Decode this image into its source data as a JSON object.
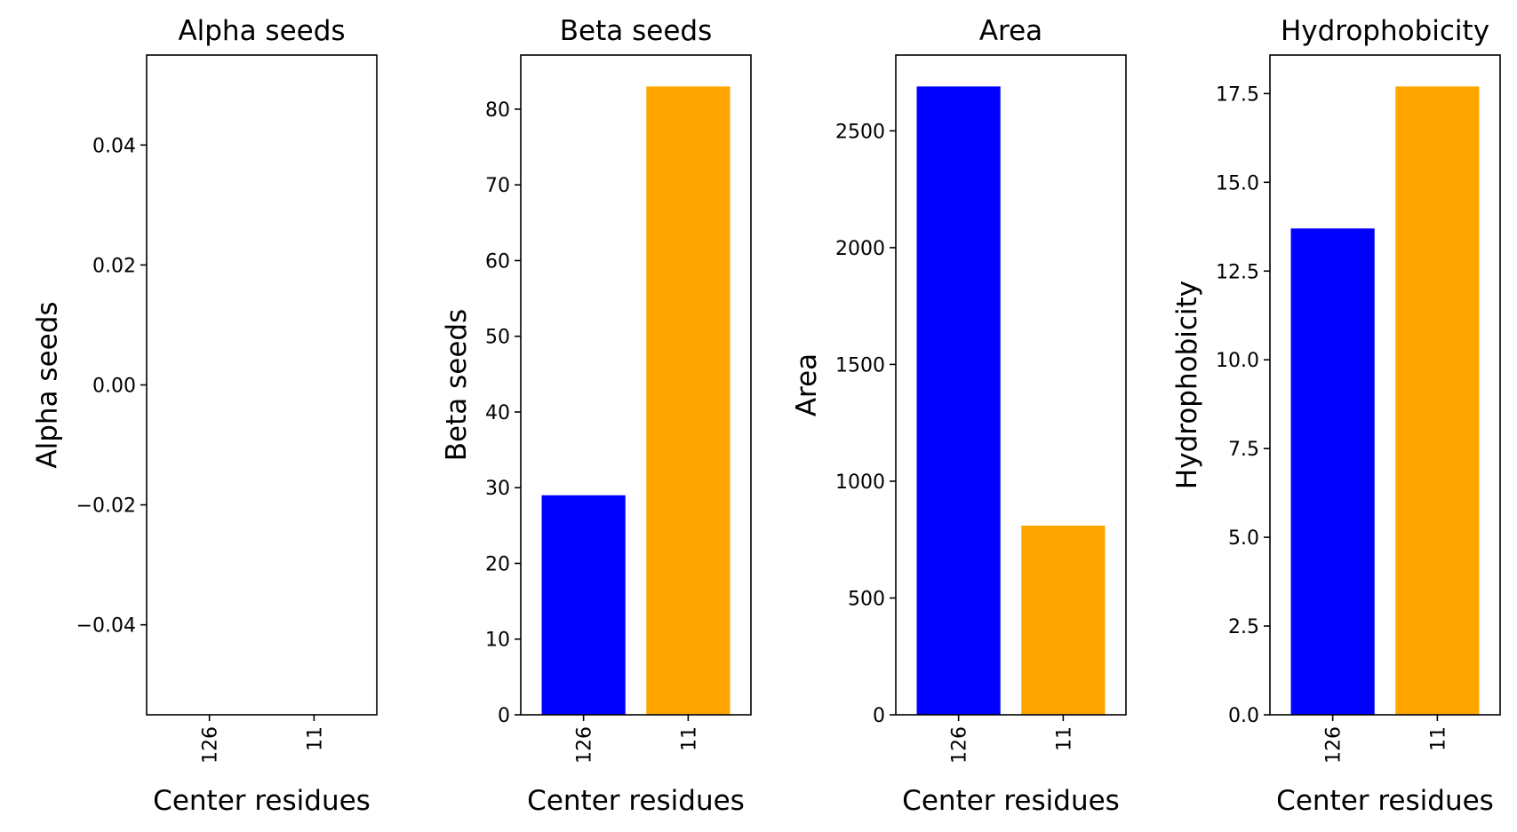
{
  "colors": {
    "bar_1": "#0000ff",
    "bar_2": "#ffa500",
    "axes": "#000000"
  },
  "chart_data": [
    {
      "type": "bar",
      "title": "Alpha seeds",
      "xlabel": "Center residues",
      "ylabel": "Alpha seeds",
      "categories": [
        "126",
        "11"
      ],
      "values": [
        0,
        0
      ],
      "ylim": [
        -0.055,
        0.055
      ],
      "yticks": [
        -0.04,
        -0.02,
        0.0,
        0.02,
        0.04
      ],
      "ytick_labels": [
        "−0.04",
        "−0.02",
        "0.00",
        "0.02",
        "0.04"
      ],
      "bar_colors": [
        "#0000ff",
        "#ffa500"
      ],
      "grid": false
    },
    {
      "type": "bar",
      "title": "Beta seeds",
      "xlabel": "Center residues",
      "ylabel": "Beta seeds",
      "categories": [
        "126",
        "11"
      ],
      "values": [
        29,
        83
      ],
      "ylim": [
        0,
        87.15
      ],
      "yticks": [
        0,
        10,
        20,
        30,
        40,
        50,
        60,
        70,
        80
      ],
      "ytick_labels": [
        "0",
        "10",
        "20",
        "30",
        "40",
        "50",
        "60",
        "70",
        "80"
      ],
      "bar_colors": [
        "#0000ff",
        "#ffa500"
      ],
      "grid": false
    },
    {
      "type": "bar",
      "title": "Area",
      "xlabel": "Center residues",
      "ylabel": "Area",
      "categories": [
        "126",
        "11"
      ],
      "values": [
        2690,
        810
      ],
      "ylim": [
        0,
        2824.5
      ],
      "yticks": [
        0,
        500,
        1000,
        1500,
        2000,
        2500
      ],
      "ytick_labels": [
        "0",
        "500",
        "1000",
        "1500",
        "2000",
        "2500"
      ],
      "bar_colors": [
        "#0000ff",
        "#ffa500"
      ],
      "grid": false
    },
    {
      "type": "bar",
      "title": "Hydrophobicity",
      "xlabel": "Center residues",
      "ylabel": "Hydrophobicity",
      "categories": [
        "126",
        "11"
      ],
      "values": [
        13.7,
        17.7
      ],
      "ylim": [
        0,
        18.585
      ],
      "yticks": [
        0.0,
        2.5,
        5.0,
        7.5,
        10.0,
        12.5,
        15.0,
        17.5
      ],
      "ytick_labels": [
        "0.0",
        "2.5",
        "5.0",
        "7.5",
        "10.0",
        "12.5",
        "15.0",
        "17.5"
      ],
      "bar_colors": [
        "#0000ff",
        "#ffa500"
      ],
      "grid": false
    }
  ]
}
